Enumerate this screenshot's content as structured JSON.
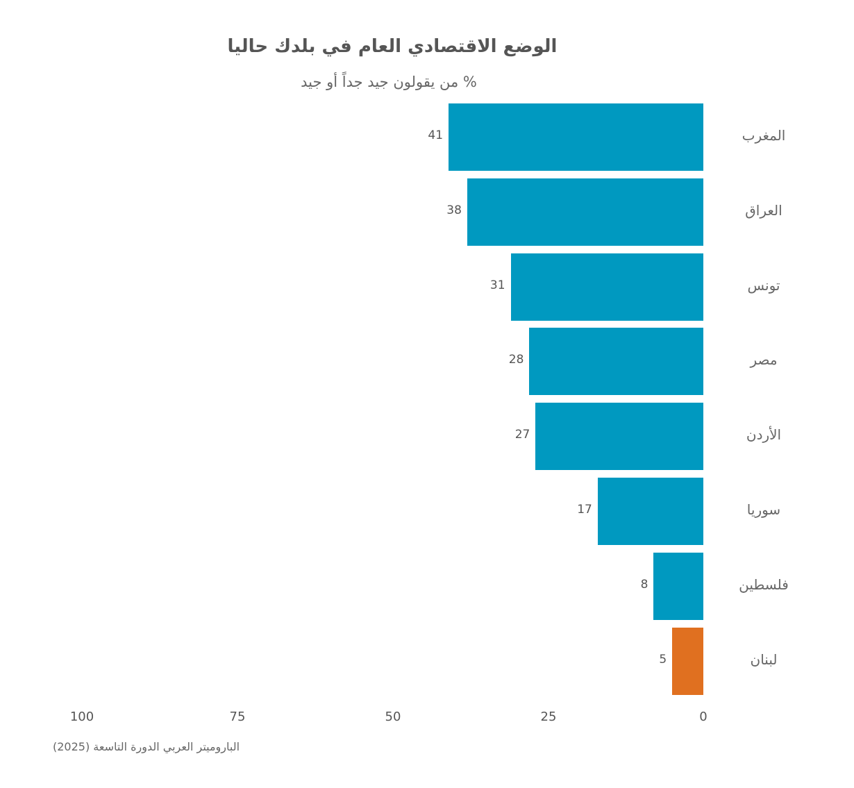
{
  "header": {
    "title": "الوضع الاقتصادي العام في بلدك حاليا",
    "subtitle": "% من يقولون جيد جداً أو جيد"
  },
  "footer": {
    "source": "الباروميتر العربي الدورة التاسعة (2025)"
  },
  "colors": {
    "primary": "#0099C0",
    "highlight": "#E07020",
    "text": "#555555"
  },
  "axis": {
    "ticks": [
      "100",
      "75",
      "50",
      "25",
      "0"
    ]
  },
  "chart_data": {
    "type": "bar",
    "orientation": "horizontal",
    "direction": "rtl",
    "title": "الوضع الاقتصادي العام في بلدك حاليا",
    "subtitle": "% من يقولون جيد جداً أو جيد",
    "categories": [
      "المغرب",
      "العراق",
      "تونس",
      "مصر",
      "الأردن",
      "سوريا",
      "فلسطين",
      "لبنان"
    ],
    "values": [
      41,
      38,
      31,
      28,
      27,
      17,
      8,
      5
    ],
    "value_labels": [
      "41",
      "38",
      "31",
      "28",
      "27",
      "17",
      "8",
      "5"
    ],
    "bar_colors": [
      "#0099C0",
      "#0099C0",
      "#0099C0",
      "#0099C0",
      "#0099C0",
      "#0099C0",
      "#0099C0",
      "#E07020"
    ],
    "xlabel": "",
    "ylabel": "",
    "xlim": [
      0,
      100
    ],
    "xticks": [
      100,
      75,
      50,
      25,
      0
    ],
    "grid": false,
    "legend": null,
    "source": "الباروميتر العربي الدورة التاسعة (2025)"
  }
}
